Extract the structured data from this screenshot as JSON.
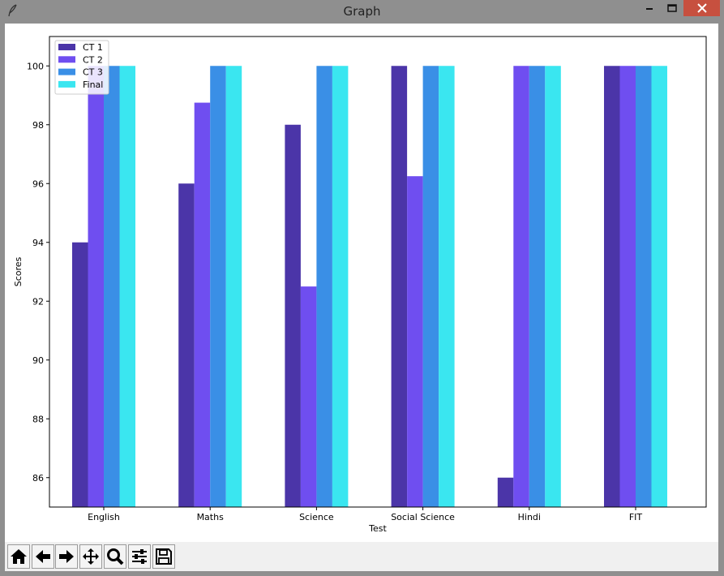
{
  "window": {
    "title": "Graph",
    "icon": "feather-icon",
    "controls": [
      "minimize-icon",
      "maximize-icon",
      "close-icon"
    ]
  },
  "toolbar": {
    "buttons": [
      "home-icon",
      "back-arrow-icon",
      "forward-arrow-icon",
      "pan-icon",
      "zoom-icon",
      "configure-subplots-icon",
      "save-icon"
    ]
  },
  "chart_data": {
    "type": "bar",
    "xlabel": "Test",
    "ylabel": "Scores",
    "categories": [
      "English",
      "Maths",
      "Science",
      "Social Science",
      "Hindi",
      "FIT"
    ],
    "ylim": [
      85,
      101
    ],
    "yticks": [
      86,
      88,
      90,
      92,
      94,
      96,
      98,
      100
    ],
    "legend_position": "top-left",
    "grid": false,
    "series": [
      {
        "name": "CT 1",
        "color": "#4b35a8",
        "values": [
          94,
          96,
          98,
          100,
          86,
          100
        ]
      },
      {
        "name": "CT 2",
        "color": "#6f4ef0",
        "values": [
          100,
          98.75,
          92.5,
          96.25,
          100,
          100
        ]
      },
      {
        "name": "CT 3",
        "color": "#3a8fe6",
        "values": [
          100,
          100,
          100,
          100,
          100,
          100
        ]
      },
      {
        "name": "Final",
        "color": "#3ae6f0",
        "values": [
          100,
          100,
          100,
          100,
          100,
          100
        ]
      }
    ]
  }
}
